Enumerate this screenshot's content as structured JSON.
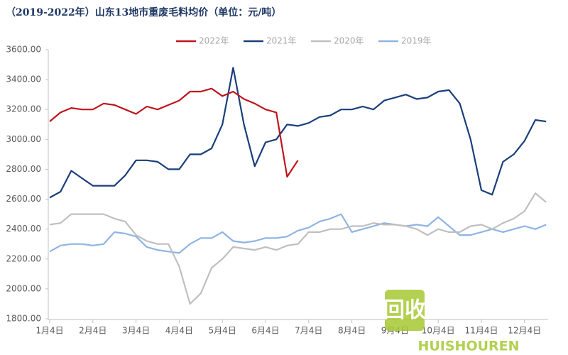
{
  "chart_data": {
    "type": "line",
    "title": "（2019-2022年）山东13地市重废毛料均价（单位：元/吨）",
    "categories": [
      "1月4日",
      null,
      null,
      null,
      "2月4日",
      null,
      null,
      null,
      "3月4日",
      null,
      null,
      null,
      "4月4日",
      null,
      null,
      null,
      "5月4日",
      null,
      null,
      null,
      "6月4日",
      null,
      null,
      null,
      "7月4日",
      null,
      null,
      null,
      "8月4日",
      null,
      null,
      null,
      "9月4日",
      null,
      null,
      null,
      "10月4日",
      null,
      null,
      null,
      "11月4日",
      null,
      null,
      null,
      "12月4日",
      null,
      null
    ],
    "series": [
      {
        "name": "2022年",
        "color": "#c0141e",
        "values": [
          3120,
          3180,
          3210,
          3200,
          3200,
          3240,
          3230,
          3200,
          3170,
          3220,
          3200,
          3230,
          3260,
          3320,
          3320,
          3340,
          3290,
          3320,
          3270,
          3240,
          3200,
          3180,
          2750,
          2860,
          null,
          null,
          null,
          null,
          null,
          null,
          null,
          null,
          null,
          null,
          null,
          null,
          null,
          null,
          null,
          null,
          null,
          null,
          null,
          null,
          null,
          null,
          null
        ]
      },
      {
        "name": "2021年",
        "color": "#1a3f7a",
        "values": [
          2610,
          2650,
          2790,
          2740,
          2690,
          2690,
          2690,
          2760,
          2860,
          2860,
          2850,
          2800,
          2800,
          2900,
          2900,
          2940,
          3100,
          3480,
          3100,
          2820,
          2980,
          3000,
          3100,
          3090,
          3110,
          3150,
          3160,
          3200,
          3200,
          3220,
          3200,
          3260,
          3280,
          3300,
          3270,
          3280,
          3320,
          3330,
          3240,
          3000,
          2660,
          2630,
          2850,
          2900,
          2990,
          3130,
          3120
        ]
      },
      {
        "name": "2020年",
        "color": "#bfbfbf",
        "values": [
          2430,
          2440,
          2500,
          2500,
          2500,
          2500,
          2470,
          2450,
          2360,
          2320,
          2300,
          2300,
          2150,
          1900,
          1970,
          2140,
          2200,
          2280,
          2270,
          2260,
          2280,
          2260,
          2290,
          2300,
          2380,
          2380,
          2400,
          2400,
          2420,
          2420,
          2440,
          2430,
          2430,
          2420,
          2400,
          2360,
          2400,
          2380,
          2380,
          2420,
          2430,
          2400,
          2440,
          2470,
          2520,
          2640,
          2580
        ]
      },
      {
        "name": "2019年",
        "color": "#8eb4e3",
        "values": [
          2250,
          2290,
          2300,
          2300,
          2290,
          2300,
          2380,
          2370,
          2350,
          2280,
          2260,
          2250,
          2240,
          2300,
          2340,
          2340,
          2380,
          2320,
          2310,
          2320,
          2340,
          2340,
          2350,
          2390,
          2410,
          2450,
          2470,
          2500,
          2380,
          2400,
          2420,
          2440,
          2430,
          2420,
          2430,
          2420,
          2480,
          2420,
          2360,
          2360,
          2380,
          2400,
          2380,
          2400,
          2420,
          2400,
          2430
        ]
      }
    ],
    "ylim": [
      1800,
      3600
    ],
    "yticks": [
      {
        "value": 1800,
        "label": "1800.00"
      },
      {
        "value": 2000,
        "label": "2000.00"
      },
      {
        "value": 2200,
        "label": "2200.00"
      },
      {
        "value": 2400,
        "label": "2400.00"
      },
      {
        "value": 2600,
        "label": "2600.00"
      },
      {
        "value": 2800,
        "label": "2800.00"
      },
      {
        "value": 3000,
        "label": "3000.00"
      },
      {
        "value": 3200,
        "label": "3200.00"
      },
      {
        "value": 3400,
        "label": "3400.00"
      },
      {
        "value": 3600,
        "label": "3600.00"
      }
    ],
    "legend": "top",
    "grid": false
  },
  "watermark": {
    "logo": "回收",
    "brand": "HUISHOUREN"
  }
}
